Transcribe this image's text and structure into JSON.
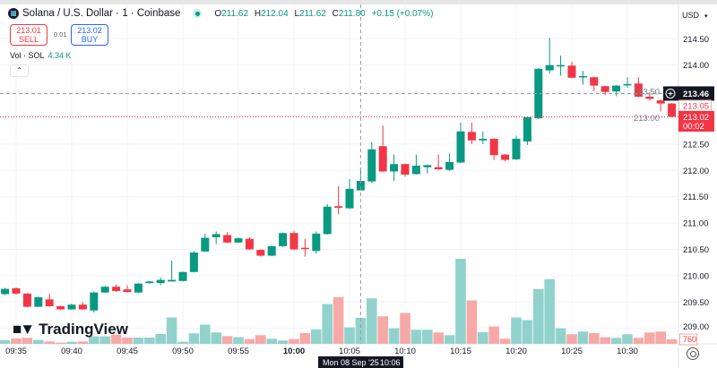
{
  "header": {
    "symbol_title": "Solana / U.S. Dollar · 1 · Coinbase",
    "ohlc": {
      "o_label": "O",
      "o": "211.62",
      "h_label": "H",
      "h": "212.04",
      "l_label": "L",
      "l": "211.62",
      "c_label": "C",
      "c": "211.80",
      "change": "+0.15 (+0.07%)"
    },
    "sell": {
      "price": "213.01",
      "label": "SELL"
    },
    "spread": "0.01",
    "buy": {
      "price": "213.02",
      "label": "BUY"
    },
    "volume": {
      "label": "Vol · SOL",
      "value": "4.34 K"
    },
    "collapse_icon": "chevron-up-icon"
  },
  "currency_selector": "USD",
  "crosshair": {
    "price": "213.46",
    "date": "Mon 08 Sep '25",
    "time": "10:06"
  },
  "price_labels": {
    "secondary": "213.05",
    "last": "213.02",
    "countdown": "00:02",
    "last_volume": "760"
  },
  "logo": "TradingView",
  "colors": {
    "up": "#089981",
    "down": "#f23645",
    "up_volume": "#92d2cc",
    "down_volume": "#f7a9a7"
  },
  "chart_data": {
    "type": "candlestick",
    "columns": [
      "time",
      "open",
      "high",
      "low",
      "close",
      "volume"
    ],
    "candles": [
      [
        "09:34",
        209.65,
        209.77,
        209.63,
        209.75,
        600
      ],
      [
        "09:35",
        209.76,
        209.78,
        209.64,
        209.66,
        900
      ],
      [
        "09:36",
        209.66,
        209.67,
        209.4,
        209.41,
        1000
      ],
      [
        "09:37",
        209.41,
        209.6,
        209.4,
        209.59,
        650
      ],
      [
        "09:38",
        209.55,
        209.66,
        209.41,
        209.42,
        400
      ],
      [
        "09:39",
        209.42,
        209.43,
        209.35,
        209.36,
        200
      ],
      [
        "09:40",
        209.36,
        209.47,
        209.35,
        209.45,
        350
      ],
      [
        "09:41",
        209.45,
        209.5,
        209.35,
        209.36,
        400
      ],
      [
        "09:42",
        209.34,
        209.7,
        209.3,
        209.68,
        1250
      ],
      [
        "09:43",
        209.68,
        209.8,
        209.67,
        209.79,
        1250
      ],
      [
        "09:44",
        209.79,
        209.83,
        209.69,
        209.71,
        1550
      ],
      [
        "09:45",
        209.74,
        209.82,
        209.68,
        209.69,
        1050
      ],
      [
        "09:46",
        209.68,
        209.86,
        209.67,
        209.85,
        1050
      ],
      [
        "09:47",
        209.86,
        209.9,
        209.85,
        209.89,
        1050
      ],
      [
        "09:48",
        209.86,
        209.97,
        209.82,
        209.92,
        1650
      ],
      [
        "09:49",
        209.89,
        210.29,
        209.89,
        209.92,
        4400
      ],
      [
        "09:50",
        209.9,
        210.08,
        209.89,
        210.07,
        350
      ],
      [
        "09:51",
        210.07,
        210.47,
        210.06,
        210.44,
        1750
      ],
      [
        "09:52",
        210.46,
        210.8,
        210.45,
        210.72,
        3200
      ],
      [
        "09:53",
        210.73,
        210.84,
        210.6,
        210.79,
        1900
      ],
      [
        "09:54",
        210.77,
        210.83,
        210.62,
        210.63,
        1300
      ],
      [
        "09:55",
        210.63,
        210.73,
        210.62,
        210.71,
        1100
      ],
      [
        "09:56",
        210.7,
        210.73,
        210.49,
        210.5,
        800
      ],
      [
        "09:57",
        210.49,
        210.5,
        210.36,
        210.38,
        1450
      ],
      [
        "09:58",
        210.38,
        210.57,
        210.37,
        210.56,
        850
      ],
      [
        "09:59",
        210.56,
        210.82,
        210.55,
        210.81,
        550
      ],
      [
        "10:00",
        210.81,
        210.85,
        210.49,
        210.5,
        800
      ],
      [
        "10:01",
        210.53,
        210.7,
        210.36,
        210.51,
        1800
      ],
      [
        "10:02",
        210.47,
        210.84,
        210.42,
        210.8,
        2400
      ],
      [
        "10:03",
        210.79,
        211.36,
        210.78,
        211.31,
        6650
      ],
      [
        "10:04",
        211.32,
        211.7,
        211.17,
        211.29,
        7800
      ],
      [
        "10:05",
        211.28,
        211.84,
        211.27,
        211.65,
        2750
      ],
      [
        "10:06",
        211.62,
        212.04,
        211.62,
        211.8,
        4340
      ],
      [
        "10:07",
        211.79,
        212.54,
        211.76,
        212.4,
        7600
      ],
      [
        "10:08",
        212.46,
        212.85,
        211.97,
        211.98,
        4600
      ],
      [
        "10:09",
        211.98,
        212.3,
        211.8,
        212.12,
        2600
      ],
      [
        "10:10",
        212.12,
        212.13,
        211.88,
        211.92,
        5150
      ],
      [
        "10:11",
        211.93,
        212.3,
        211.92,
        212.09,
        2350
      ],
      [
        "10:12",
        212.06,
        212.11,
        211.94,
        212.1,
        2350
      ],
      [
        "10:13",
        212.06,
        212.3,
        212.01,
        212.02,
        1900
      ],
      [
        "10:14",
        212.01,
        212.32,
        211.99,
        212.16,
        1450
      ],
      [
        "10:15",
        212.15,
        212.91,
        212.14,
        212.74,
        14200
      ],
      [
        "10:16",
        212.73,
        212.91,
        212.5,
        212.57,
        7250
      ],
      [
        "10:17",
        212.57,
        212.74,
        212.5,
        212.6,
        1950
      ],
      [
        "10:18",
        212.6,
        212.61,
        212.2,
        212.29,
        2900
      ],
      [
        "10:19",
        212.3,
        212.31,
        212.17,
        212.2,
        850
      ],
      [
        "10:20",
        212.21,
        212.66,
        212.2,
        212.6,
        4400
      ],
      [
        "10:21",
        212.55,
        213.01,
        212.48,
        213.01,
        3950
      ],
      [
        "10:22",
        212.99,
        213.94,
        212.98,
        213.93,
        9150
      ],
      [
        "10:23",
        213.9,
        214.52,
        213.84,
        214.0,
        10800
      ],
      [
        "10:24",
        213.98,
        214.18,
        213.8,
        214.0,
        2600
      ],
      [
        "10:25",
        213.99,
        214.06,
        213.75,
        213.76,
        1600
      ],
      [
        "10:26",
        213.78,
        213.89,
        213.63,
        213.79,
        2050
      ],
      [
        "10:27",
        213.77,
        213.78,
        213.5,
        213.61,
        1800
      ],
      [
        "10:28",
        213.6,
        213.61,
        213.43,
        213.49,
        1100
      ],
      [
        "10:29",
        213.5,
        213.62,
        213.41,
        213.61,
        1000
      ],
      [
        "10:30",
        213.62,
        213.77,
        213.57,
        213.64,
        1600
      ],
      [
        "10:31",
        213.65,
        213.77,
        213.39,
        213.4,
        1000
      ],
      [
        "10:32",
        213.4,
        213.48,
        213.33,
        213.36,
        1900
      ],
      [
        "10:33",
        213.33,
        213.34,
        213.12,
        213.27,
        2050
      ],
      [
        "10:34",
        213.27,
        213.28,
        213.01,
        213.02,
        760
      ]
    ],
    "y_ticks": [
      "214.50",
      "214.00",
      "213.50",
      "213.00",
      "212.50",
      "212.00",
      "211.50",
      "211.00",
      "210.50",
      "210.00",
      "209.50",
      "209.00"
    ],
    "x_ticks": [
      "09:35",
      "09:40",
      "09:45",
      "09:50",
      "09:55",
      "10:00",
      "10:05",
      "10:10",
      "10:15",
      "10:20",
      "10:25",
      "10:30"
    ],
    "ylim": [
      208.75,
      215.0
    ],
    "grid": true,
    "legend": "top-left"
  }
}
